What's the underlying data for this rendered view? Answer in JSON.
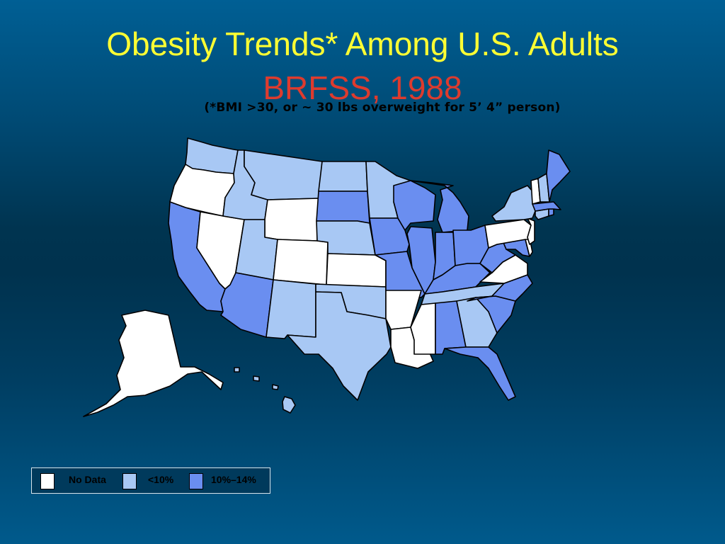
{
  "title": "Obesity Trends* Among U.S. Adults",
  "subtitle": "BRFSS, 1988",
  "note": "(*BMI >30, or ~ 30 lbs overweight for 5’ 4” person)",
  "colors": {
    "background": "#00324e",
    "title": "#ffff33",
    "subtitle": "#dd3b2e",
    "no_data": "#ffffff",
    "lt10": "#a8c8f4",
    "c10_14": "#6a8ef0"
  },
  "legend": {
    "items": [
      {
        "key": "no_data",
        "label": "No Data"
      },
      {
        "key": "lt10",
        "label": "<10%"
      },
      {
        "key": "c10_14",
        "label": "10%–14%"
      }
    ]
  },
  "states": {
    "WA": "lt10",
    "OR": "no_data",
    "CA": "c10_14",
    "NV": "no_data",
    "ID": "lt10",
    "MT": "lt10",
    "WY": "no_data",
    "UT": "lt10",
    "AZ": "c10_14",
    "CO": "no_data",
    "NM": "lt10",
    "ND": "lt10",
    "SD": "c10_14",
    "NE": "lt10",
    "KS": "no_data",
    "OK": "lt10",
    "TX": "lt10",
    "MN": "lt10",
    "IA": "c10_14",
    "MO": "c10_14",
    "AR": "no_data",
    "LA": "no_data",
    "WI": "c10_14",
    "IL": "c10_14",
    "MI": "c10_14",
    "IN": "c10_14",
    "OH": "c10_14",
    "KY": "c10_14",
    "TN": "lt10",
    "MS": "no_data",
    "AL": "c10_14",
    "GA": "lt10",
    "FL": "c10_14",
    "SC": "c10_14",
    "NC": "c10_14",
    "VA": "no_data",
    "WV": "c10_14",
    "MD": "c10_14",
    "DE": "no_data",
    "NJ": "no_data",
    "PA": "no_data",
    "NY": "lt10",
    "CT": "lt10",
    "RI": "c10_14",
    "MA": "c10_14",
    "VT": "no_data",
    "NH": "lt10",
    "ME": "c10_14",
    "AK": "no_data",
    "HI": "lt10"
  }
}
